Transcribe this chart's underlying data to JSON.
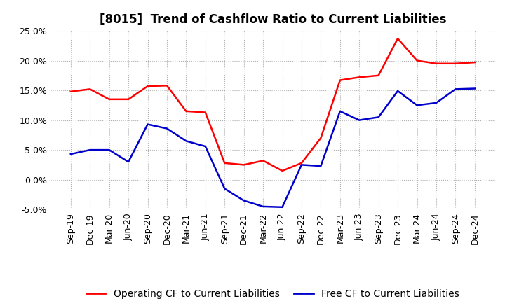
{
  "title": "[8015]  Trend of Cashflow Ratio to Current Liabilities",
  "x_labels": [
    "Sep-19",
    "Dec-19",
    "Mar-20",
    "Jun-20",
    "Sep-20",
    "Dec-20",
    "Mar-21",
    "Jun-21",
    "Sep-21",
    "Dec-21",
    "Mar-22",
    "Jun-22",
    "Sep-22",
    "Dec-22",
    "Mar-23",
    "Jun-23",
    "Sep-23",
    "Dec-23",
    "Mar-24",
    "Jun-24",
    "Sep-24",
    "Dec-24"
  ],
  "operating_cf": [
    14.8,
    15.2,
    13.5,
    13.5,
    15.7,
    15.8,
    11.5,
    11.3,
    2.8,
    2.5,
    3.2,
    1.5,
    2.8,
    7.0,
    16.7,
    17.2,
    17.5,
    23.7,
    20.0,
    19.5,
    19.5,
    19.7
  ],
  "free_cf": [
    4.3,
    5.0,
    5.0,
    3.0,
    9.3,
    8.6,
    6.5,
    5.6,
    -1.5,
    -3.5,
    -4.5,
    -4.6,
    2.5,
    2.3,
    11.5,
    10.0,
    10.5,
    14.9,
    12.5,
    12.9,
    15.2,
    15.3
  ],
  "ylim": [
    -5.0,
    25.0
  ],
  "yticks": [
    -5.0,
    0.0,
    5.0,
    10.0,
    15.0,
    20.0,
    25.0
  ],
  "operating_color": "#ff0000",
  "free_color": "#0000cc",
  "bg_color": "#ffffff",
  "plot_bg_color": "#ffffff",
  "grid_color": "#b0b0b0",
  "legend_op": "Operating CF to Current Liabilities",
  "legend_free": "Free CF to Current Liabilities",
  "title_fontsize": 12,
  "label_fontsize": 9,
  "legend_fontsize": 10
}
